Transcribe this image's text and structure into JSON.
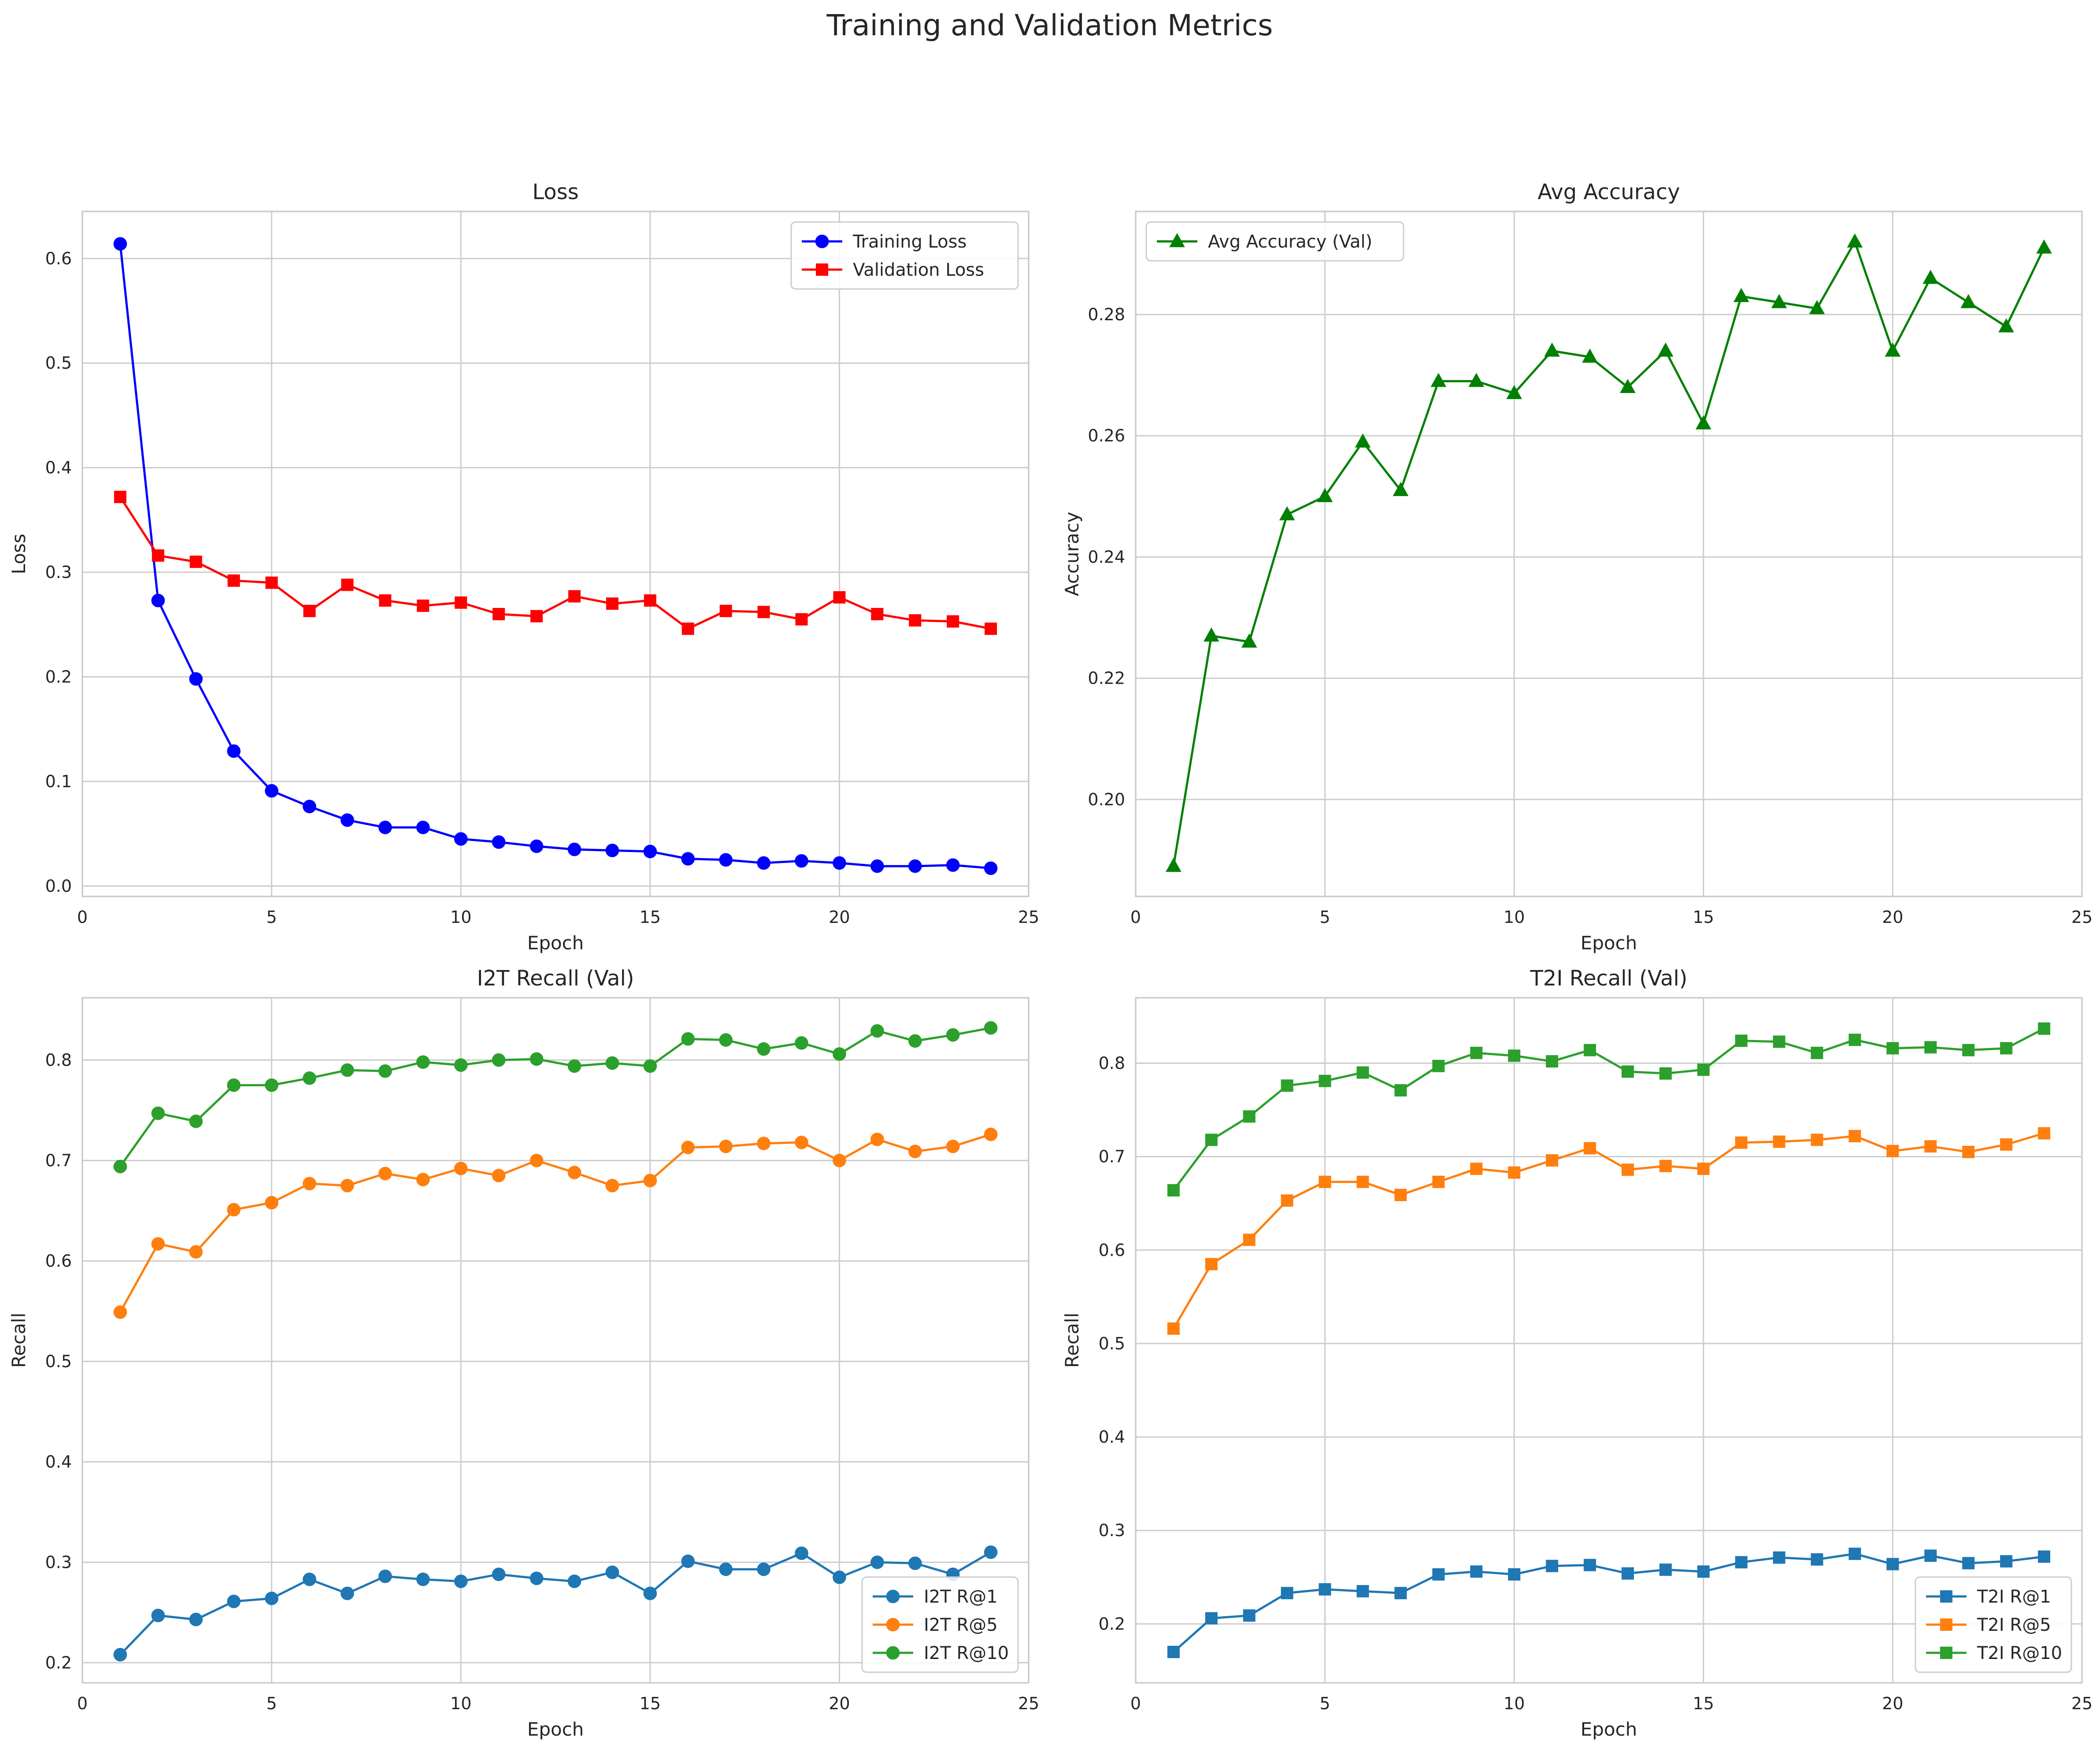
{
  "figure": {
    "title": "Training and Validation Metrics"
  },
  "chart_data": [
    {
      "type": "line",
      "title": "Loss",
      "xlabel": "Epoch",
      "ylabel": "Loss",
      "xlim": [
        0,
        25
      ],
      "ylim": [
        -0.01,
        0.645
      ],
      "xticks": [
        0,
        5,
        10,
        15,
        20,
        25
      ],
      "yticks": [
        0.0,
        0.1,
        0.2,
        0.3,
        0.4,
        0.5,
        0.6
      ],
      "ytick_decimals": 1,
      "grid": true,
      "legend": "upper right",
      "x": [
        1,
        2,
        3,
        4,
        5,
        6,
        7,
        8,
        9,
        10,
        11,
        12,
        13,
        14,
        15,
        16,
        17,
        18,
        19,
        20,
        21,
        22,
        23,
        24
      ],
      "series": [
        {
          "name": "Training Loss",
          "color": "#0000ff",
          "marker": "circle",
          "values": [
            0.614,
            0.273,
            0.198,
            0.129,
            0.091,
            0.076,
            0.063,
            0.056,
            0.056,
            0.045,
            0.042,
            0.038,
            0.035,
            0.034,
            0.033,
            0.026,
            0.025,
            0.022,
            0.024,
            0.022,
            0.019,
            0.019,
            0.02,
            0.017
          ]
        },
        {
          "name": "Validation Loss",
          "color": "#ff0000",
          "marker": "square",
          "values": [
            0.372,
            0.316,
            0.31,
            0.292,
            0.29,
            0.263,
            0.288,
            0.273,
            0.268,
            0.271,
            0.26,
            0.258,
            0.277,
            0.27,
            0.273,
            0.246,
            0.263,
            0.262,
            0.255,
            0.276,
            0.26,
            0.254,
            0.253,
            0.246
          ]
        }
      ]
    },
    {
      "type": "line",
      "title": "Avg Accuracy",
      "xlabel": "Epoch",
      "ylabel": "Accuracy",
      "xlim": [
        0,
        25
      ],
      "ylim": [
        0.184,
        0.297
      ],
      "xticks": [
        0,
        5,
        10,
        15,
        20,
        25
      ],
      "yticks": [
        0.2,
        0.22,
        0.24,
        0.26,
        0.28
      ],
      "ytick_decimals": 2,
      "grid": true,
      "legend": "upper left",
      "x": [
        1,
        2,
        3,
        4,
        5,
        6,
        7,
        8,
        9,
        10,
        11,
        12,
        13,
        14,
        15,
        16,
        17,
        18,
        19,
        20,
        21,
        22,
        23,
        24
      ],
      "series": [
        {
          "name": "Avg Accuracy (Val)",
          "color": "#008000",
          "marker": "triangle",
          "values": [
            0.189,
            0.227,
            0.226,
            0.247,
            0.25,
            0.259,
            0.251,
            0.269,
            0.269,
            0.267,
            0.274,
            0.273,
            0.268,
            0.274,
            0.262,
            0.283,
            0.282,
            0.281,
            0.292,
            0.274,
            0.286,
            0.282,
            0.278,
            0.291
          ]
        }
      ]
    },
    {
      "type": "line",
      "title": "I2T Recall (Val)",
      "xlabel": "Epoch",
      "ylabel": "Recall",
      "xlim": [
        0,
        25
      ],
      "ylim": [
        0.18,
        0.862
      ],
      "xticks": [
        0,
        5,
        10,
        15,
        20,
        25
      ],
      "yticks": [
        0.2,
        0.3,
        0.4,
        0.5,
        0.6,
        0.7,
        0.8
      ],
      "ytick_decimals": 1,
      "grid": true,
      "legend": "lower right",
      "x": [
        1,
        2,
        3,
        4,
        5,
        6,
        7,
        8,
        9,
        10,
        11,
        12,
        13,
        14,
        15,
        16,
        17,
        18,
        19,
        20,
        21,
        22,
        23,
        24
      ],
      "series": [
        {
          "name": "I2T R@1",
          "color": "#1f77b4",
          "marker": "circle",
          "values": [
            0.208,
            0.247,
            0.243,
            0.261,
            0.264,
            0.283,
            0.269,
            0.286,
            0.283,
            0.281,
            0.288,
            0.284,
            0.281,
            0.29,
            0.269,
            0.301,
            0.293,
            0.293,
            0.309,
            0.285,
            0.3,
            0.299,
            0.288,
            0.31
          ]
        },
        {
          "name": "I2T R@5",
          "color": "#ff7f0e",
          "marker": "circle",
          "values": [
            0.549,
            0.617,
            0.609,
            0.651,
            0.658,
            0.677,
            0.675,
            0.687,
            0.681,
            0.692,
            0.685,
            0.7,
            0.688,
            0.675,
            0.68,
            0.713,
            0.714,
            0.717,
            0.718,
            0.7,
            0.721,
            0.709,
            0.714,
            0.726
          ]
        },
        {
          "name": "I2T R@10",
          "color": "#2ca02c",
          "marker": "circle",
          "values": [
            0.694,
            0.747,
            0.739,
            0.775,
            0.775,
            0.782,
            0.79,
            0.789,
            0.798,
            0.795,
            0.8,
            0.801,
            0.794,
            0.797,
            0.794,
            0.821,
            0.82,
            0.811,
            0.817,
            0.806,
            0.829,
            0.819,
            0.825,
            0.832
          ]
        }
      ]
    },
    {
      "type": "line",
      "title": "T2I Recall (Val)",
      "xlabel": "Epoch",
      "ylabel": "Recall",
      "xlim": [
        0,
        25
      ],
      "ylim": [
        0.137,
        0.87
      ],
      "xticks": [
        0,
        5,
        10,
        15,
        20,
        25
      ],
      "yticks": [
        0.2,
        0.3,
        0.4,
        0.5,
        0.6,
        0.7,
        0.8
      ],
      "ytick_decimals": 1,
      "grid": true,
      "legend": "lower right",
      "x": [
        1,
        2,
        3,
        4,
        5,
        6,
        7,
        8,
        9,
        10,
        11,
        12,
        13,
        14,
        15,
        16,
        17,
        18,
        19,
        20,
        21,
        22,
        23,
        24
      ],
      "series": [
        {
          "name": "T2I R@1",
          "color": "#1f77b4",
          "marker": "square",
          "values": [
            0.17,
            0.206,
            0.209,
            0.233,
            0.237,
            0.235,
            0.233,
            0.253,
            0.256,
            0.253,
            0.262,
            0.263,
            0.254,
            0.258,
            0.256,
            0.266,
            0.271,
            0.269,
            0.275,
            0.264,
            0.273,
            0.265,
            0.267,
            0.272
          ]
        },
        {
          "name": "T2I R@5",
          "color": "#ff7f0e",
          "marker": "square",
          "values": [
            0.516,
            0.585,
            0.611,
            0.653,
            0.673,
            0.673,
            0.659,
            0.673,
            0.687,
            0.683,
            0.696,
            0.709,
            0.686,
            0.69,
            0.687,
            0.715,
            0.716,
            0.718,
            0.722,
            0.706,
            0.711,
            0.705,
            0.713,
            0.725
          ]
        },
        {
          "name": "T2I R@10",
          "color": "#2ca02c",
          "marker": "square",
          "values": [
            0.664,
            0.718,
            0.743,
            0.776,
            0.781,
            0.79,
            0.771,
            0.797,
            0.811,
            0.808,
            0.802,
            0.814,
            0.791,
            0.789,
            0.793,
            0.824,
            0.823,
            0.811,
            0.825,
            0.816,
            0.817,
            0.814,
            0.816,
            0.837
          ]
        }
      ]
    }
  ]
}
